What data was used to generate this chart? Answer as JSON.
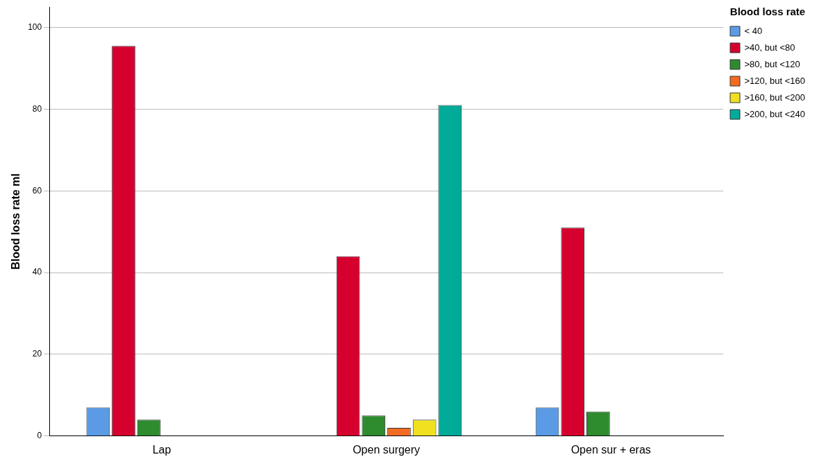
{
  "chart_data": {
    "type": "bar",
    "ylabel": "Blood loss rate ml",
    "legend_title": "Blood loss rate",
    "categories": [
      "Lap",
      "Open surgery",
      "Open sur + eras"
    ],
    "series": [
      {
        "name": "< 40",
        "color": "#5b9be6",
        "values": [
          7,
          null,
          7
        ]
      },
      {
        "name": ">40, but <80",
        "color": "#d6002f",
        "values": [
          95.5,
          44,
          51
        ]
      },
      {
        "name": ">80, but <120",
        "color": "#2e8b2e",
        "values": [
          4,
          5,
          6
        ]
      },
      {
        "name": ">120, but <160",
        "color": "#f26b21",
        "values": [
          null,
          2,
          null
        ]
      },
      {
        "name": ">160, but <200",
        "color": "#f0e020",
        "values": [
          null,
          4,
          null
        ]
      },
      {
        "name": ">200, but <240",
        "color": "#00ab9a",
        "values": [
          null,
          81,
          null
        ]
      }
    ],
    "ylim": [
      0,
      105
    ],
    "yticks": [
      0,
      20,
      40,
      60,
      80,
      100
    ],
    "grid": "y",
    "legend": "top right"
  }
}
